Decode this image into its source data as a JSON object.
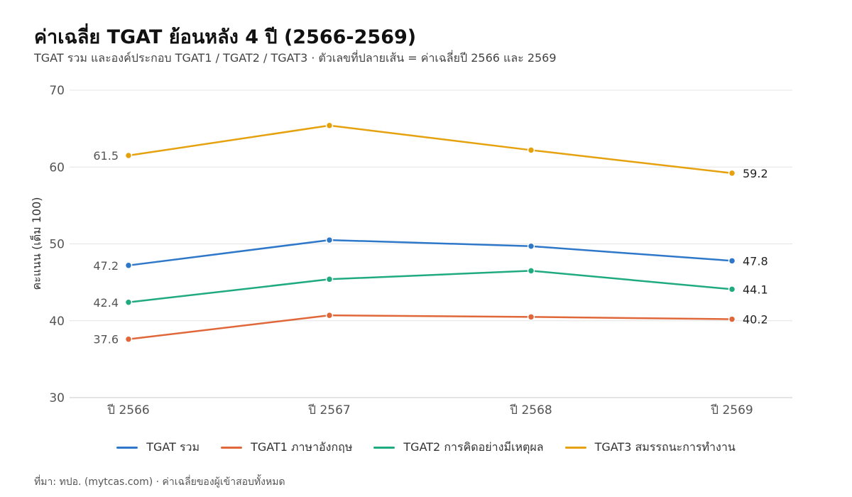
{
  "header": {
    "title": "ค่าเฉลี่ย TGAT ย้อนหลัง 4 ปี (2566-2569)",
    "subtitle": "TGAT รวม และองค์ประกอบ TGAT1 / TGAT2 / TGAT3 · ตัวเลขที่ปลายเส้น = ค่าเฉลี่ยปี 2566 และ 2569"
  },
  "caption": "ที่มา: ทปอ. (mytcas.com) · ค่าเฉลี่ยของผู้เข้าสอบทั้งหมด",
  "chart_data": {
    "type": "line",
    "title": "ค่าเฉลี่ย TGAT ย้อนหลัง 4 ปี (2566-2569)",
    "subtitle": "TGAT รวม และองค์ประกอบ TGAT1 / TGAT2 / TGAT3 · ตัวเลขที่ปลายเส้น = ค่าเฉลี่ยปี 2566 และ 2569",
    "xlabel": "",
    "ylabel": "คะแนน (เต็ม 100)",
    "categories": [
      "ปี 2566",
      "ปี 2567",
      "ปี 2568",
      "ปี 2569"
    ],
    "ylim": [
      30,
      70
    ],
    "yticks": [
      30,
      40,
      50,
      60,
      70
    ],
    "grid": true,
    "legend_position": "bottom",
    "series": [
      {
        "name": "TGAT รวม",
        "color": "#2f78c9",
        "values": [
          47.2,
          50.5,
          49.7,
          47.8
        ],
        "labels": [
          "47.2",
          "",
          "",
          "47.8"
        ]
      },
      {
        "name": "TGAT1 ภาษาอังกฤษ",
        "color": "#e0673a",
        "values": [
          37.6,
          40.7,
          40.5,
          40.2
        ],
        "labels": [
          "37.6",
          "",
          "",
          "40.2"
        ]
      },
      {
        "name": "TGAT2 การคิดอย่างมีเหตุผล",
        "color": "#1faa7f",
        "values": [
          42.4,
          45.4,
          46.5,
          44.1
        ],
        "labels": [
          "42.4",
          "",
          "",
          "44.1"
        ]
      },
      {
        "name": "TGAT3 สมรรถนะการทำงาน",
        "color": "#e6a10e",
        "values": [
          61.5,
          65.4,
          62.2,
          59.2
        ],
        "labels": [
          "61.5",
          "",
          "",
          "59.2"
        ]
      }
    ]
  }
}
